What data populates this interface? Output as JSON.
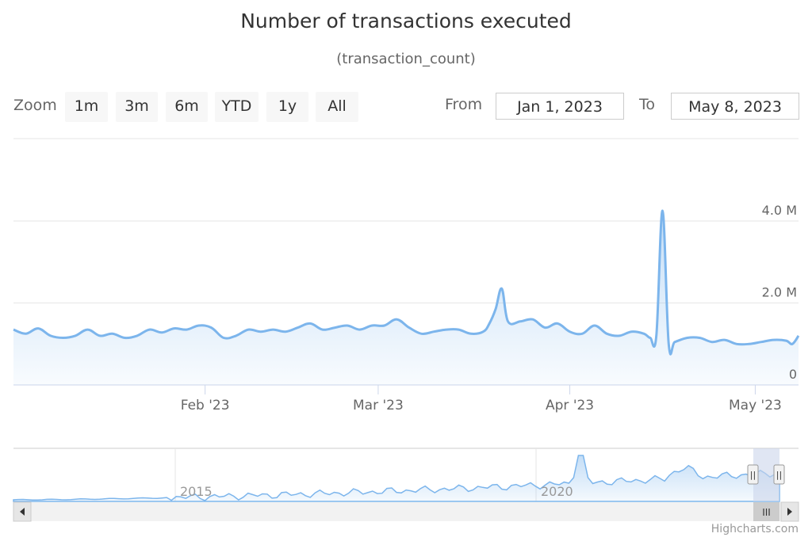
{
  "title": "Number of transactions executed",
  "subtitle": "(transaction_count)",
  "range_selector": {
    "zoom_label": "Zoom",
    "buttons": [
      "1m",
      "3m",
      "6m",
      "YTD",
      "1y",
      "All"
    ],
    "from_label": "From",
    "from_value": "Jan 1, 2023",
    "to_label": "To",
    "to_value": "May 8, 2023"
  },
  "navigator": {
    "year_labels": [
      "2015",
      "2020"
    ],
    "handle_glyph": "||",
    "scrollbar_grip": "III",
    "arrow_left_icon": "arrow-left-icon",
    "arrow_right_icon": "arrow-right-icon"
  },
  "credits": "Highcharts.com",
  "colors": {
    "series": "#7cb5ec",
    "grid": "#e6e6e6",
    "nav_mask": "#ccd6eb"
  },
  "chart_data": {
    "type": "area",
    "title": "Number of transactions executed",
    "subtitle": "(transaction_count)",
    "xlabel": "",
    "ylabel": "",
    "x_range": [
      "2023-01-01",
      "2023-05-08"
    ],
    "ylim": [
      0,
      4000000
    ],
    "y_ticks": [
      0,
      2000000,
      4000000
    ],
    "y_tick_labels": [
      "0",
      "2.0 M",
      "4.0 M"
    ],
    "x_ticks": [
      "2023-02-01",
      "2023-03-01",
      "2023-04-01",
      "2023-05-01"
    ],
    "x_tick_labels": [
      "Feb '23",
      "Mar '23",
      "Apr '23",
      "May '23"
    ],
    "grid": true,
    "series": [
      {
        "x": [
          "2023-01-01",
          "2023-01-03",
          "2023-01-05",
          "2023-01-07",
          "2023-01-09",
          "2023-01-11",
          "2023-01-13",
          "2023-01-15",
          "2023-01-17",
          "2023-01-19",
          "2023-01-21",
          "2023-01-23",
          "2023-01-25",
          "2023-01-27",
          "2023-01-29",
          "2023-01-31",
          "2023-02-02",
          "2023-02-04",
          "2023-02-06",
          "2023-02-08",
          "2023-02-10",
          "2023-02-12",
          "2023-02-14",
          "2023-02-16",
          "2023-02-18",
          "2023-02-20",
          "2023-02-22",
          "2023-02-24",
          "2023-02-26",
          "2023-02-28",
          "2023-03-02",
          "2023-03-04",
          "2023-03-06",
          "2023-03-08",
          "2023-03-10",
          "2023-03-12",
          "2023-03-14",
          "2023-03-16",
          "2023-03-18",
          "2023-03-19",
          "2023-03-20",
          "2023-03-21",
          "2023-03-22",
          "2023-03-24",
          "2023-03-26",
          "2023-03-28",
          "2023-03-30",
          "2023-04-01",
          "2023-04-03",
          "2023-04-05",
          "2023-04-07",
          "2023-04-09",
          "2023-04-11",
          "2023-04-13",
          "2023-04-14",
          "2023-04-15",
          "2023-04-16",
          "2023-04-17",
          "2023-04-18",
          "2023-04-20",
          "2023-04-22",
          "2023-04-24",
          "2023-04-26",
          "2023-04-28",
          "2023-04-30",
          "2023-05-02",
          "2023-05-04",
          "2023-05-06",
          "2023-05-07",
          "2023-05-08"
        ],
        "values": [
          1350000,
          1250000,
          1380000,
          1200000,
          1150000,
          1200000,
          1350000,
          1200000,
          1250000,
          1150000,
          1200000,
          1350000,
          1280000,
          1380000,
          1350000,
          1450000,
          1400000,
          1150000,
          1200000,
          1350000,
          1300000,
          1350000,
          1300000,
          1400000,
          1500000,
          1350000,
          1400000,
          1450000,
          1350000,
          1450000,
          1450000,
          1600000,
          1400000,
          1250000,
          1300000,
          1350000,
          1350000,
          1250000,
          1300000,
          1500000,
          1850000,
          2350000,
          1550000,
          1550000,
          1600000,
          1400000,
          1500000,
          1300000,
          1250000,
          1450000,
          1250000,
          1200000,
          1300000,
          1250000,
          1150000,
          1200000,
          4250000,
          1000000,
          1050000,
          1150000,
          1150000,
          1050000,
          1100000,
          1000000,
          1000000,
          1050000,
          1100000,
          1080000,
          1000000,
          1200000
        ]
      }
    ]
  }
}
